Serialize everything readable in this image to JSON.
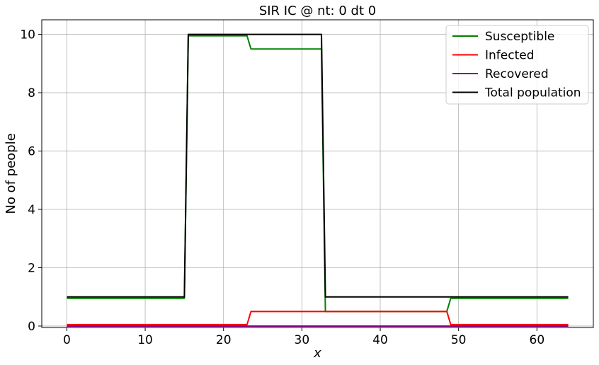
{
  "chart_data": {
    "type": "line",
    "title": "SIR IC @ nt: 0 dt 0",
    "xlabel": "x",
    "ylabel": "No of people",
    "xlim": [
      -3.2,
      67.2
    ],
    "ylim": [
      -0.05,
      10.5
    ],
    "xticks": [
      0,
      10,
      20,
      30,
      40,
      50,
      60
    ],
    "yticks": [
      0,
      2,
      4,
      6,
      8,
      10
    ],
    "grid": true,
    "legend_position": "top-right",
    "series": [
      {
        "name": "Susceptible",
        "color": "#008000",
        "x": [
          0,
          15,
          15.5,
          23,
          23.5,
          32,
          32.5,
          33,
          48.5,
          49,
          64
        ],
        "y": [
          0.95,
          0.95,
          9.95,
          9.95,
          9.5,
          9.5,
          9.5,
          0.5,
          0.5,
          0.95,
          0.95
        ]
      },
      {
        "name": "Infected",
        "color": "#ff0000",
        "x": [
          0,
          23,
          23.5,
          48.5,
          49,
          64
        ],
        "y": [
          0.05,
          0.05,
          0.5,
          0.5,
          0.05,
          0.05
        ]
      },
      {
        "name": "Recovered",
        "color": "#800080",
        "x": [
          0,
          64
        ],
        "y": [
          0,
          0
        ]
      },
      {
        "name": "Total population",
        "color": "#000000",
        "x": [
          0,
          15,
          15.5,
          32.5,
          33,
          64
        ],
        "y": [
          1,
          1,
          10,
          10,
          1,
          1
        ]
      }
    ]
  }
}
